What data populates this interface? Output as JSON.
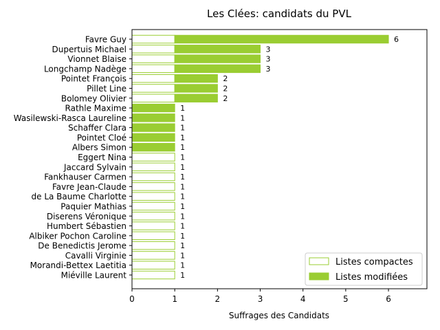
{
  "chart_data": {
    "type": "bar",
    "orientation": "horizontal",
    "title": "Les Clées: candidats du PVL",
    "xlabel": "Suffrages des Candidats",
    "ylabel": "",
    "xlim": [
      0,
      6.9
    ],
    "xticks": [
      "0",
      "1",
      "2",
      "3",
      "4",
      "5",
      "6"
    ],
    "categories": [
      "Favre Guy",
      "Dupertuis Michael",
      "Vionnet Blaise",
      "Longchamp Nadège",
      "Pointet François",
      "Pillet Line",
      "Bolomey Olivier",
      "Rathle Maxime",
      "Wasilewski-Rasca Laureline",
      "Schaffer Clara",
      "Pointet Cloé",
      "Albers Simon",
      "Eggert Nina",
      "Jaccard Sylvain",
      "Fankhauser Carmen",
      "Favre Jean-Claude",
      "de La Baume Charlotte",
      "Paquier Mathias",
      "Diserens Véronique",
      "Humbert Sébastien",
      "Albiker Pochon Caroline",
      "De Benedictis Jerome",
      "Cavalli Virginie",
      "Morandi-Bettex Laetitia",
      "Miéville Laurent"
    ],
    "series": [
      {
        "name": "Listes compactes",
        "color": "#9acd32",
        "style": "outline",
        "values": [
          1,
          1,
          1,
          1,
          1,
          1,
          1,
          0,
          0,
          0,
          0,
          0,
          1,
          1,
          1,
          1,
          1,
          1,
          1,
          1,
          1,
          1,
          1,
          1,
          1
        ]
      },
      {
        "name": "Listes modifiées",
        "color": "#9acd32",
        "style": "filled",
        "values": [
          5,
          2,
          2,
          2,
          1,
          1,
          1,
          1,
          1,
          1,
          1,
          1,
          0,
          0,
          0,
          0,
          0,
          0,
          0,
          0,
          0,
          0,
          0,
          0,
          0
        ]
      }
    ],
    "totals": [
      "6",
      "3",
      "3",
      "3",
      "2",
      "2",
      "2",
      "1",
      "1",
      "1",
      "1",
      "1",
      "1",
      "1",
      "1",
      "1",
      "1",
      "1",
      "1",
      "1",
      "1",
      "1",
      "1",
      "1",
      "1"
    ],
    "legend": "bottom-right",
    "grid": false
  }
}
